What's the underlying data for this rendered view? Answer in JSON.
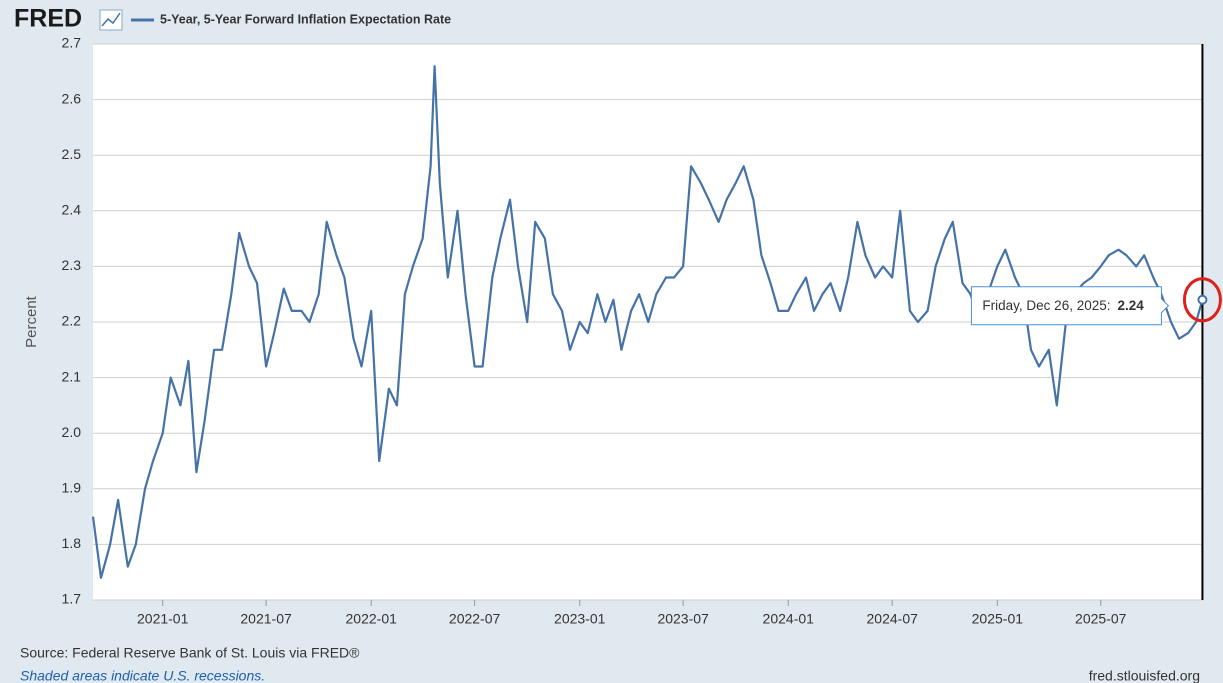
{
  "brand": "FRED",
  "chart_data": {
    "type": "line",
    "y_label": "Percent",
    "series": [
      {
        "name": "5-Year, 5-Year Forward Inflation Expectation Rate",
        "color": "#4572a7",
        "x": [
          "2020-09-01",
          "2020-09-15",
          "2020-10-01",
          "2020-10-15",
          "2020-11-01",
          "2020-11-15",
          "2020-12-01",
          "2020-12-15",
          "2021-01-01",
          "2021-01-15",
          "2021-02-01",
          "2021-02-15",
          "2021-03-01",
          "2021-03-15",
          "2021-04-01",
          "2021-04-15",
          "2021-05-01",
          "2021-05-15",
          "2021-06-01",
          "2021-06-15",
          "2021-07-01",
          "2021-07-15",
          "2021-08-01",
          "2021-08-15",
          "2021-09-01",
          "2021-09-15",
          "2021-10-01",
          "2021-10-15",
          "2021-11-01",
          "2021-11-15",
          "2021-12-01",
          "2021-12-15",
          "2022-01-01",
          "2022-01-15",
          "2022-02-01",
          "2022-02-15",
          "2022-03-01",
          "2022-03-15",
          "2022-04-01",
          "2022-04-15",
          "2022-04-22",
          "2022-05-01",
          "2022-05-15",
          "2022-06-01",
          "2022-06-15",
          "2022-07-01",
          "2022-07-15",
          "2022-08-01",
          "2022-08-15",
          "2022-09-01",
          "2022-09-15",
          "2022-10-01",
          "2022-10-15",
          "2022-11-01",
          "2022-11-15",
          "2022-12-01",
          "2022-12-15",
          "2023-01-01",
          "2023-01-15",
          "2023-02-01",
          "2023-02-15",
          "2023-03-01",
          "2023-03-15",
          "2023-04-01",
          "2023-04-15",
          "2023-05-01",
          "2023-05-15",
          "2023-06-01",
          "2023-06-15",
          "2023-07-01",
          "2023-07-15",
          "2023-08-01",
          "2023-08-15",
          "2023-09-01",
          "2023-09-15",
          "2023-10-01",
          "2023-10-15",
          "2023-11-01",
          "2023-11-15",
          "2023-12-01",
          "2023-12-15",
          "2024-01-01",
          "2024-01-15",
          "2024-02-01",
          "2024-02-15",
          "2024-03-01",
          "2024-03-15",
          "2024-04-01",
          "2024-04-15",
          "2024-05-01",
          "2024-05-15",
          "2024-06-01",
          "2024-06-15",
          "2024-07-01",
          "2024-07-15",
          "2024-08-01",
          "2024-08-15",
          "2024-09-01",
          "2024-09-15",
          "2024-10-01",
          "2024-10-15",
          "2024-11-01",
          "2024-11-15",
          "2024-12-01",
          "2024-12-15",
          "2025-01-01",
          "2025-01-15",
          "2025-02-01",
          "2025-02-15",
          "2025-03-01",
          "2025-03-15",
          "2025-04-01",
          "2025-04-15",
          "2025-05-01",
          "2025-05-15",
          "2025-06-01",
          "2025-06-15",
          "2025-07-01",
          "2025-07-15",
          "2025-08-01",
          "2025-08-15",
          "2025-09-01",
          "2025-09-15",
          "2025-10-01",
          "2025-10-15",
          "2025-11-01",
          "2025-11-15",
          "2025-12-01",
          "2025-12-15",
          "2025-12-26"
        ],
        "values": [
          1.85,
          1.74,
          1.8,
          1.88,
          1.76,
          1.8,
          1.9,
          1.95,
          2.0,
          2.1,
          2.05,
          2.13,
          1.93,
          2.02,
          2.15,
          2.15,
          2.25,
          2.36,
          2.3,
          2.27,
          2.12,
          2.18,
          2.26,
          2.22,
          2.22,
          2.2,
          2.25,
          2.38,
          2.32,
          2.28,
          2.17,
          2.12,
          2.22,
          1.95,
          2.08,
          2.05,
          2.25,
          2.3,
          2.35,
          2.48,
          2.66,
          2.45,
          2.28,
          2.4,
          2.25,
          2.12,
          2.12,
          2.28,
          2.35,
          2.42,
          2.3,
          2.2,
          2.38,
          2.35,
          2.25,
          2.22,
          2.15,
          2.2,
          2.18,
          2.25,
          2.2,
          2.24,
          2.15,
          2.22,
          2.25,
          2.2,
          2.25,
          2.28,
          2.28,
          2.3,
          2.48,
          2.45,
          2.42,
          2.38,
          2.42,
          2.45,
          2.48,
          2.42,
          2.32,
          2.27,
          2.22,
          2.22,
          2.25,
          2.28,
          2.22,
          2.25,
          2.27,
          2.22,
          2.28,
          2.38,
          2.32,
          2.28,
          2.3,
          2.28,
          2.4,
          2.22,
          2.2,
          2.22,
          2.3,
          2.35,
          2.38,
          2.27,
          2.25,
          2.2,
          2.25,
          2.3,
          2.33,
          2.28,
          2.25,
          2.15,
          2.12,
          2.15,
          2.05,
          2.2,
          2.25,
          2.27,
          2.28,
          2.3,
          2.32,
          2.33,
          2.32,
          2.3,
          2.32,
          2.28,
          2.25,
          2.2,
          2.17,
          2.18,
          2.2,
          2.24
        ]
      }
    ],
    "xlim": [
      "2020-09-01",
      "2025-12-27"
    ],
    "xticks": [
      {
        "value": "2021-01-01",
        "label": "2021-01"
      },
      {
        "value": "2021-07-01",
        "label": "2021-07"
      },
      {
        "value": "2022-01-01",
        "label": "2022-01"
      },
      {
        "value": "2022-07-01",
        "label": "2022-07"
      },
      {
        "value": "2023-01-01",
        "label": "2023-01"
      },
      {
        "value": "2023-07-01",
        "label": "2023-07"
      },
      {
        "value": "2024-01-01",
        "label": "2024-01"
      },
      {
        "value": "2024-07-01",
        "label": "2024-07"
      },
      {
        "value": "2025-01-01",
        "label": "2025-01"
      },
      {
        "value": "2025-07-01",
        "label": "2025-07"
      }
    ],
    "ylim": [
      1.7,
      2.7
    ],
    "yticks": [
      1.7,
      1.8,
      1.9,
      {
        "value": 2,
        "label": "2.0"
      },
      2.1,
      2.2,
      2.3,
      2.4,
      2.5,
      2.6,
      2.7
    ],
    "grid": true,
    "tooltip": {
      "label": "Friday, Dec 26, 2025:"
    }
  },
  "footer": {
    "source": "Source: Federal Reserve Bank of St. Louis via FRED®",
    "note": "Shaded areas indicate U.S. recessions.",
    "site": "fred.stlouisfed.org"
  }
}
